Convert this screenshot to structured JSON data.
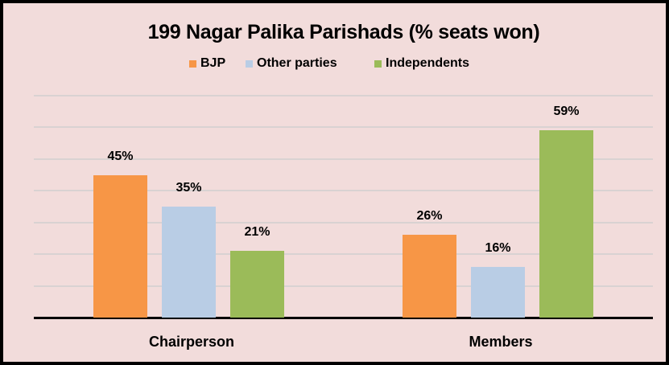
{
  "chart_data": {
    "type": "bar",
    "title": "199 Nagar Palika Parishads (% seats won)",
    "categories": [
      "Chairperson",
      "Members"
    ],
    "series": [
      {
        "name": "BJP",
        "color": "#F79646",
        "values": [
          45,
          26
        ],
        "labels": [
          "45%",
          "26%"
        ]
      },
      {
        "name": "Other parties",
        "color": "#B9CDE5",
        "values": [
          35,
          16
        ],
        "labels": [
          "35%",
          "16%"
        ]
      },
      {
        "name": "Independents",
        "color": "#9BBB59",
        "values": [
          21,
          59
        ],
        "labels": [
          "21%",
          "59%"
        ]
      }
    ],
    "xlabel": "",
    "ylabel": "",
    "ylim": [
      0,
      70
    ],
    "grid": true,
    "gridline_step": 10,
    "legend_position": "top",
    "background": "#F2DCDB",
    "border_color": "#000000"
  },
  "title": "199 Nagar Palika Parishads (% seats won)",
  "legend": [
    {
      "label": "BJP",
      "color": "#F79646"
    },
    {
      "label": "Other parties",
      "color": "#B9CDE5"
    },
    {
      "label": "Independents",
      "color": "#9BBB59"
    }
  ],
  "categories": [
    "Chairperson",
    "Members"
  ]
}
